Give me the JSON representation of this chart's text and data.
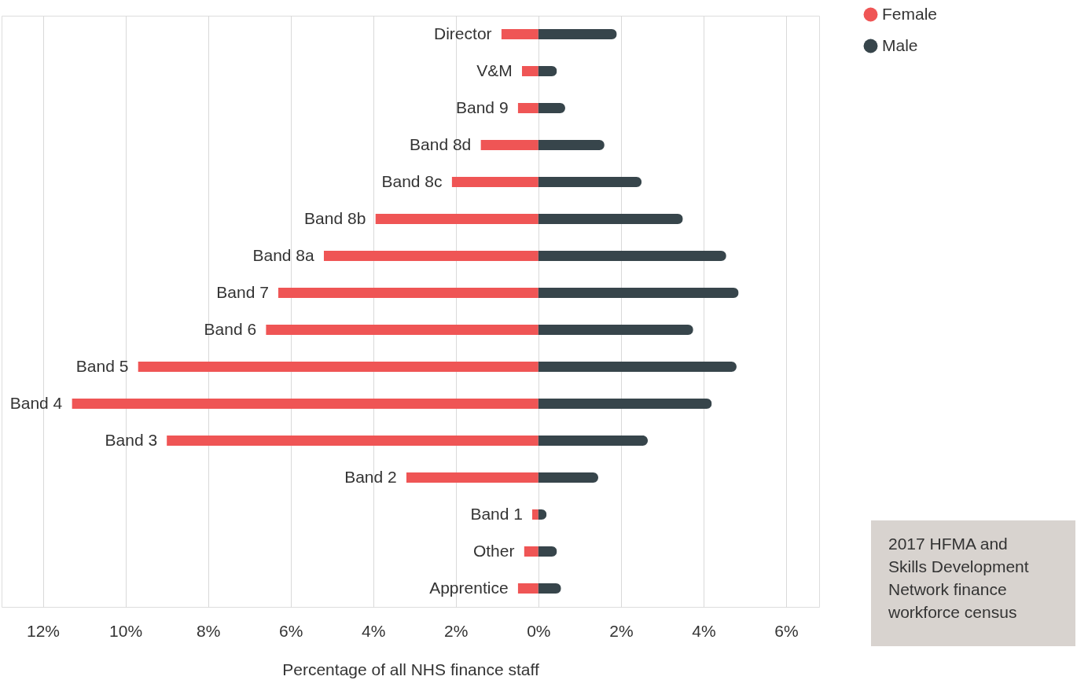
{
  "chart_data": {
    "type": "bar",
    "orientation": "horizontal",
    "stacked": true,
    "categories": [
      "Director",
      "V&M",
      "Band 9",
      "Band 8d",
      "Band 8c",
      "Band 8b",
      "Band 8a",
      "Band 7",
      "Band 6",
      "Band 5",
      "Band 4",
      "Band 3",
      "Band 2",
      "Band 1",
      "Other",
      "Apprentice"
    ],
    "series": [
      {
        "name": "Female",
        "color": "#ef5555",
        "values": [
          -0.9,
          -0.4,
          -0.5,
          -1.4,
          -2.1,
          -3.95,
          -5.2,
          -6.3,
          -6.6,
          -9.7,
          -11.3,
          -9.0,
          -3.2,
          -0.15,
          -0.35,
          -0.5
        ]
      },
      {
        "name": "Male",
        "color": "#37454b",
        "values": [
          1.9,
          0.45,
          0.65,
          1.6,
          2.5,
          3.5,
          4.55,
          4.85,
          3.75,
          4.8,
          4.2,
          2.65,
          1.45,
          0.2,
          0.45,
          0.55
        ]
      }
    ],
    "xlim": [
      -13,
      6.8
    ],
    "xticks": [
      {
        "value": -12,
        "label": "12%"
      },
      {
        "value": -10,
        "label": "10%"
      },
      {
        "value": -8,
        "label": "8%"
      },
      {
        "value": -6,
        "label": "6%"
      },
      {
        "value": -4,
        "label": "4%"
      },
      {
        "value": -2,
        "label": "2%"
      },
      {
        "value": 0,
        "label": "0%"
      },
      {
        "value": 2,
        "label": "2%"
      },
      {
        "value": 4,
        "label": "4%"
      },
      {
        "value": 6,
        "label": "6%"
      }
    ],
    "xlabel": "Percentage of all NHS finance staff",
    "grid": "x",
    "legend": "top right",
    "annotations": [
      "2017 HFMA and\nSkills Development\nNetwork finance\nworkforce census"
    ]
  }
}
